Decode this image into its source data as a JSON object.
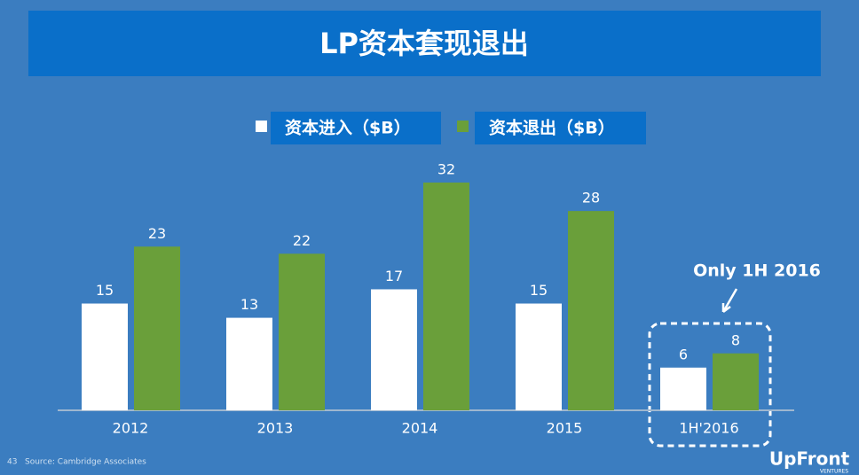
{
  "chart_data": {
    "type": "bar",
    "title": "LP资本套现退出",
    "categories": [
      "2012",
      "2013",
      "2014",
      "2015",
      "1H'2016"
    ],
    "series": [
      {
        "name": "资本进入（$B）",
        "color": "#ffffff",
        "values": [
          15,
          13,
          17,
          15,
          6
        ]
      },
      {
        "name": "资本退出（$B）",
        "color": "#6a9f3a",
        "values": [
          23,
          22,
          32,
          28,
          8
        ]
      }
    ],
    "annotation": "Only 1H 2016",
    "page_number": "43",
    "source": "Source: Cambridge Associates",
    "logo": "UpFront",
    "logo_sub": "VENTURES"
  }
}
